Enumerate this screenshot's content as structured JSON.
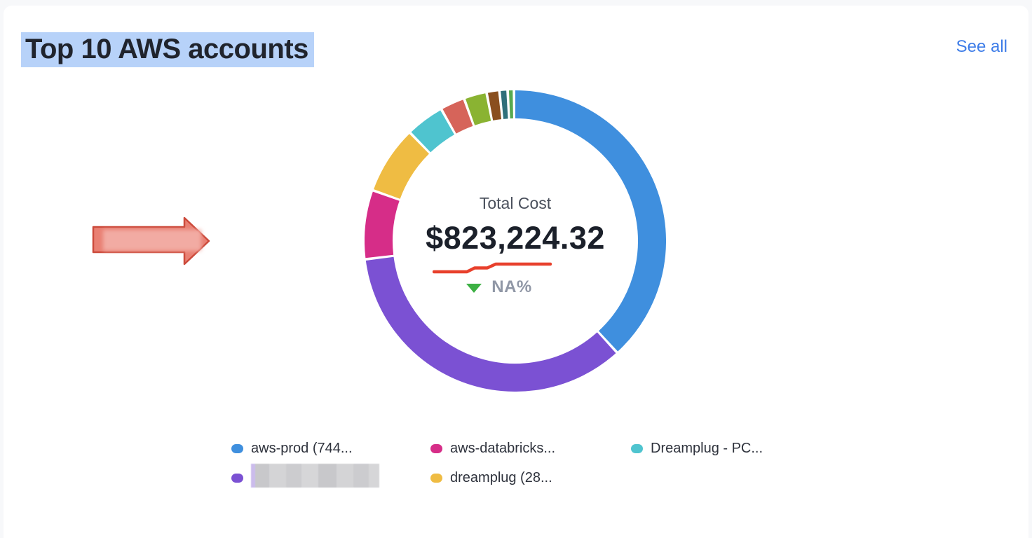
{
  "page": {
    "background": "#f7f8fa",
    "card_background": "#ffffff"
  },
  "header": {
    "title": "Top 10 AWS accounts",
    "title_highlight_color": "#b7d2f9",
    "see_all_label": "See all",
    "see_all_color": "#3d7ce8"
  },
  "chart_data": {
    "type": "pie",
    "variant": "donut",
    "title": "Top 10 AWS accounts",
    "legend_position": "bottom",
    "legend_columns": 3,
    "center": {
      "label": "Total Cost",
      "value": "$823,224.32",
      "delta_label": "NA%",
      "delta_direction": "down",
      "delta_icon_color": "#3cb043",
      "sparkline_color": "#e8402c",
      "sparkline_points": [
        [
          2,
          14
        ],
        [
          49,
          14
        ],
        [
          60,
          8.5
        ],
        [
          78,
          8.5
        ],
        [
          90,
          3
        ],
        [
          168,
          3
        ]
      ]
    },
    "segments": [
      {
        "label": "aws-prod (744...",
        "color": "#3f8fde",
        "share_pct": 38.6,
        "redacted": false
      },
      {
        "label": "",
        "color": "#7b51d3",
        "share_pct": 35.0,
        "redacted": true
      },
      {
        "label": "aws-databricks...",
        "color": "#d62d88",
        "share_pct": 7.2,
        "redacted": false
      },
      {
        "label": "dreamplug (28...",
        "color": "#efbc43",
        "share_pct": 7.1,
        "redacted": false
      },
      {
        "label": "Dreamplug - PC...",
        "color": "#4fc4cf",
        "share_pct": 3.9,
        "redacted": false
      },
      {
        "label": "",
        "color": "#d6645a",
        "share_pct": 2.4,
        "redacted": false
      },
      {
        "label": "",
        "color": "#8ab332",
        "share_pct": 2.2,
        "redacted": false
      },
      {
        "label": "",
        "color": "#8a4f1e",
        "share_pct": 1.1,
        "redacted": false
      },
      {
        "label": "",
        "color": "#2f6f7a",
        "share_pct": 0.6,
        "redacted": false
      },
      {
        "label": "",
        "color": "#57a950",
        "share_pct": 0.4,
        "redacted": false
      }
    ],
    "legend_visible_items": 5
  },
  "annotations": {
    "arrow": {
      "shape": "right-arrow",
      "fill": "#e98073",
      "border": "#cc4a3b",
      "redacted_fill": "#f2aba3",
      "contains_redacted_text": true
    }
  }
}
